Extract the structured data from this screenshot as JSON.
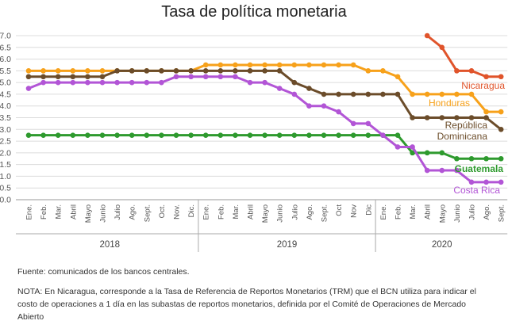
{
  "chart_data": {
    "type": "line",
    "title": "Tasa de política monetaria",
    "ylim": [
      0,
      7
    ],
    "yticks": [
      "0.0",
      "0.5",
      "1.0",
      "1.5",
      "2.0",
      "2.5",
      "3.0",
      "3.5",
      "4.0",
      "4.5",
      "5.0",
      "5.5",
      "6.0",
      "6.5",
      "7.0"
    ],
    "categories": [
      "Ene.",
      "Feb.",
      "Mar.",
      "Abril",
      "Mayo",
      "Junio",
      "Julio",
      "Ago.",
      "Sept.",
      "Oct.",
      "Nov.",
      "Dic.",
      "Ene.",
      "Feb.",
      "Mar.",
      "Abril",
      "Mayo",
      "Junio",
      "Julio",
      "Ago.",
      "Sept.",
      "Oct",
      "Nov",
      "Dic",
      "Ene.",
      "Feb.",
      "Mar.",
      "Abril",
      "Mayo",
      "Junio",
      "Julio",
      "Ago.",
      "Sept."
    ],
    "years": [
      {
        "label": "2018",
        "start": 0,
        "end": 11
      },
      {
        "label": "2019",
        "start": 12,
        "end": 23
      },
      {
        "label": "2020",
        "start": 24,
        "end": 32
      }
    ],
    "series": [
      {
        "name": "Nicaragua",
        "color": "#e0542b",
        "label_lines": [
          "Nicaragua"
        ],
        "values": [
          null,
          null,
          null,
          null,
          null,
          null,
          null,
          null,
          null,
          null,
          null,
          null,
          null,
          null,
          null,
          null,
          null,
          null,
          null,
          null,
          null,
          null,
          null,
          null,
          null,
          null,
          null,
          7.0,
          6.5,
          5.5,
          5.5,
          5.25,
          5.25
        ]
      },
      {
        "name": "Honduras",
        "color": "#f7a11a",
        "label_lines": [
          "Honduras"
        ],
        "values": [
          5.5,
          5.5,
          5.5,
          5.5,
          5.5,
          5.5,
          5.5,
          5.5,
          5.5,
          5.5,
          5.5,
          5.5,
          5.75,
          5.75,
          5.75,
          5.75,
          5.75,
          5.75,
          5.75,
          5.75,
          5.75,
          5.75,
          5.75,
          5.5,
          5.5,
          5.25,
          4.5,
          4.5,
          4.5,
          4.5,
          4.5,
          3.75,
          3.75
        ]
      },
      {
        "name": "República Dominicana",
        "color": "#6b4c2a",
        "label_lines": [
          "República",
          "Dominicana"
        ],
        "values": [
          5.25,
          5.25,
          5.25,
          5.25,
          5.25,
          5.25,
          5.5,
          5.5,
          5.5,
          5.5,
          5.5,
          5.5,
          5.5,
          5.5,
          5.5,
          5.5,
          5.5,
          5.5,
          5.0,
          4.75,
          4.5,
          4.5,
          4.5,
          4.5,
          4.5,
          4.5,
          3.5,
          3.5,
          3.5,
          3.5,
          3.5,
          3.5,
          3.0
        ]
      },
      {
        "name": "Guatemala",
        "color": "#2e9a2e",
        "label_lines": [
          "Guatemala"
        ],
        "values": [
          2.75,
          2.75,
          2.75,
          2.75,
          2.75,
          2.75,
          2.75,
          2.75,
          2.75,
          2.75,
          2.75,
          2.75,
          2.75,
          2.75,
          2.75,
          2.75,
          2.75,
          2.75,
          2.75,
          2.75,
          2.75,
          2.75,
          2.75,
          2.75,
          2.75,
          2.75,
          2.0,
          2.0,
          2.0,
          1.75,
          1.75,
          1.75,
          1.75
        ]
      },
      {
        "name": "Costa Rica",
        "color": "#b255d6",
        "label_lines": [
          "Costa Rica"
        ],
        "values": [
          4.75,
          5.0,
          5.0,
          5.0,
          5.0,
          5.0,
          5.0,
          5.0,
          5.0,
          5.0,
          5.25,
          5.25,
          5.25,
          5.25,
          5.25,
          5.0,
          5.0,
          4.75,
          4.5,
          4.0,
          4.0,
          3.75,
          3.25,
          3.25,
          2.75,
          2.25,
          2.25,
          1.25,
          1.25,
          1.25,
          0.75,
          0.75,
          0.75
        ]
      }
    ]
  },
  "notes": {
    "source": "Fuente: comunicados de los bancos centrales.",
    "nota": "NOTA: En Nicaragua, corresponde a la Tasa de Referencia de Reportos Monetarios (TRM) que el BCN utiliza para indicar el costo de operaciones a 1 día en las subastas de reportos monetarios, definida por el Comité de Operaciones de Mercado Abierto"
  }
}
